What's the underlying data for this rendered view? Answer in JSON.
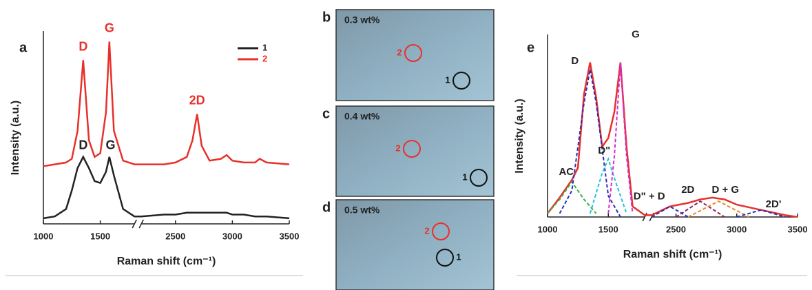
{
  "chart_data": [
    {
      "type": "line",
      "panel": "a",
      "xlabel": "Raman shift (cm⁻¹)",
      "ylabel": "Intensity (a.u.)",
      "xlim": [
        1000,
        3500
      ],
      "xbreak": [
        1800,
        2200
      ],
      "xticks": [
        1000,
        1500,
        2500,
        3000,
        3500
      ],
      "ylim": [
        0,
        100
      ],
      "legend": "upper right",
      "x": [
        1000,
        1100,
        1200,
        1250,
        1300,
        1350,
        1400,
        1450,
        1500,
        1550,
        1580,
        1620,
        1700,
        1800,
        2200,
        2400,
        2500,
        2600,
        2650,
        2690,
        2730,
        2800,
        2900,
        2950,
        3000,
        3100,
        3200,
        3240,
        3300,
        3500
      ],
      "series": [
        {
          "name": "1",
          "color": "#222222",
          "values": [
            3,
            4,
            8,
            18,
            30,
            36,
            30,
            23,
            22,
            28,
            36,
            26,
            8,
            4,
            4,
            5,
            5,
            6,
            6,
            6,
            6,
            6,
            6,
            6,
            5,
            5,
            4,
            4,
            4,
            3
          ]
        },
        {
          "name": "2",
          "color": "#e8302a",
          "values": [
            31,
            32,
            33,
            35,
            50,
            88,
            45,
            36,
            38,
            60,
            98,
            50,
            34,
            32,
            32,
            32,
            33,
            36,
            45,
            59,
            42,
            34,
            35,
            37,
            34,
            33,
            33,
            35,
            33,
            32
          ]
        }
      ],
      "annotations": [
        {
          "text": "D",
          "x": 1350,
          "y": 95,
          "color": "#e8302a"
        },
        {
          "text": "G",
          "x": 1580,
          "y": 105,
          "color": "#e8302a"
        },
        {
          "text": "2D",
          "x": 2690,
          "y": 66,
          "color": "#e8302a"
        },
        {
          "text": "D",
          "x": 1350,
          "y": 42,
          "color": "#222222"
        },
        {
          "text": "G",
          "x": 1590,
          "y": 42,
          "color": "#222222"
        }
      ]
    },
    {
      "type": "line",
      "panel": "e",
      "xlabel": "Raman shift (cm⁻¹)",
      "ylabel": "Intensity (a.u.)",
      "xlim": [
        1000,
        3500
      ],
      "xbreak": [
        1800,
        2300
      ],
      "xticks": [
        1000,
        1500,
        2500,
        3000,
        3500
      ],
      "ylim": [
        0,
        100
      ],
      "series": [
        {
          "color": "#e8302a",
          "x": [
            1000,
            1100,
            1200,
            1250,
            1300,
            1350,
            1400,
            1450,
            1500,
            1550,
            1600,
            1650,
            1700,
            1800,
            2300,
            2450,
            2600,
            2700,
            2800,
            2900,
            3000,
            3200,
            3400,
            3500
          ],
          "values": [
            2,
            11,
            21,
            28,
            70,
            88,
            68,
            40,
            45,
            60,
            88,
            40,
            6,
            1,
            1,
            6,
            8,
            10,
            11,
            10,
            7,
            4,
            1,
            0
          ]
        },
        {
          "name": "AC",
          "color": "#3cb043",
          "dashed": true,
          "x": [
            1000,
            1100,
            1200,
            1300,
            1400
          ],
          "values": [
            2,
            10,
            20,
            10,
            2
          ]
        },
        {
          "name": "D",
          "color": "#2b2fb8",
          "dashed": true,
          "x": [
            1100,
            1200,
            1300,
            1350,
            1400,
            1500,
            1600
          ],
          "values": [
            2,
            15,
            65,
            84,
            65,
            12,
            0
          ]
        },
        {
          "name": "D\"",
          "color": "#22c4d6",
          "dashed": true,
          "x": [
            1350,
            1450,
            1500,
            1550,
            1650
          ],
          "values": [
            2,
            25,
            33,
            22,
            2
          ]
        },
        {
          "name": "G",
          "color": "#d62bd6",
          "dashed": true,
          "x": [
            1500,
            1550,
            1600,
            1650,
            1700
          ],
          "values": [
            2,
            35,
            88,
            35,
            2
          ]
        },
        {
          "name": "D\" + D",
          "color": "#2b2fb8",
          "dashed": true,
          "x": [
            2300,
            2450,
            2600
          ],
          "values": [
            0,
            6,
            0
          ]
        },
        {
          "name": "2D",
          "color": "#8a1f6a",
          "dashed": true,
          "x": [
            2500,
            2700,
            2900
          ],
          "values": [
            0,
            9,
            0
          ]
        },
        {
          "name": "D + G",
          "color": "#e8892a",
          "dashed": true,
          "x": [
            2600,
            2850,
            3100
          ],
          "values": [
            0,
            9,
            0
          ]
        },
        {
          "name": "2D'",
          "color": "#2b2fb8",
          "dashed": true,
          "x": [
            3000,
            3200,
            3400
          ],
          "values": [
            0,
            4,
            0
          ]
        }
      ]
    }
  ],
  "micrographs": [
    {
      "label": "b",
      "caption": "0.3 wt%",
      "markers": [
        {
          "label": "2",
          "color": "#e8302a"
        },
        {
          "label": "1",
          "color": "#111111"
        }
      ]
    },
    {
      "label": "c",
      "caption": "0.4 wt%",
      "markers": [
        {
          "label": "2",
          "color": "#e8302a"
        },
        {
          "label": "1",
          "color": "#111111"
        }
      ]
    },
    {
      "label": "d",
      "caption": "0.5 wt%",
      "markers": [
        {
          "label": "2",
          "color": "#e8302a"
        },
        {
          "label": "1",
          "color": "#111111"
        }
      ]
    }
  ]
}
